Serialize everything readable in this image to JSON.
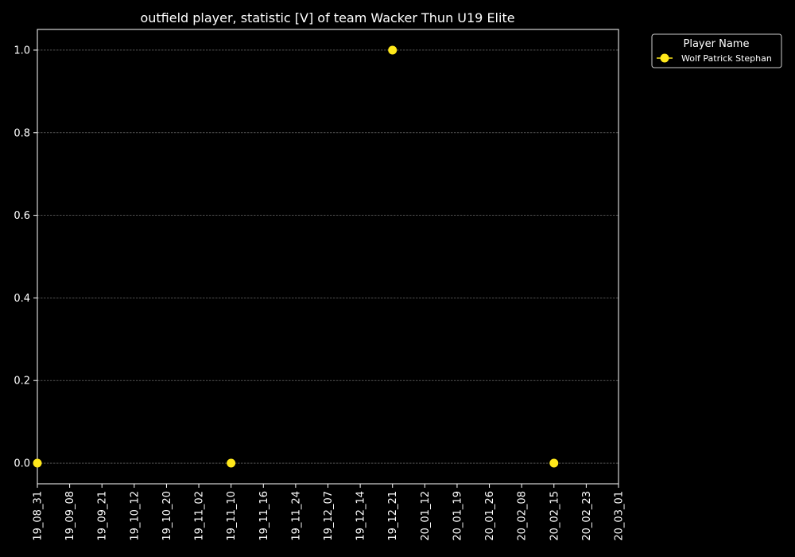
{
  "chart_data": {
    "type": "scatter",
    "title": "outfield player, statistic [V] of team Wacker Thun U19 Elite",
    "xlabel": "",
    "ylabel": "",
    "x_tick_labels": [
      "19_08_31",
      "19_09_08",
      "19_09_21",
      "19_10_12",
      "19_10_20",
      "19_11_02",
      "19_11_10",
      "19_11_16",
      "19_11_24",
      "19_12_07",
      "19_12_14",
      "19_12_21",
      "20_01_12",
      "20_01_19",
      "20_01_26",
      "20_02_08",
      "20_02_15",
      "20_02_23",
      "20_03_01"
    ],
    "y_tick_labels": [
      "0.0",
      "0.2",
      "0.4",
      "0.6",
      "0.8",
      "1.0"
    ],
    "y_ticks": [
      0.0,
      0.2,
      0.4,
      0.6,
      0.8,
      1.0
    ],
    "ylim": [
      -0.05,
      1.05
    ],
    "grid": "y",
    "legend": {
      "title": "Player Name",
      "placement": "top-right-outside"
    },
    "series": [
      {
        "name": "Wolf Patrick Stephan",
        "color": "#ffe81a",
        "points": [
          {
            "x": "19_08_31",
            "y": 0
          },
          {
            "x": "19_11_10",
            "y": 0
          },
          {
            "x": "19_12_21",
            "y": 1
          },
          {
            "x": "20_02_15",
            "y": 0
          }
        ]
      }
    ]
  },
  "colors": {
    "background": "#000000",
    "axes": "#ffffff",
    "grid": "#7f7f7f"
  }
}
